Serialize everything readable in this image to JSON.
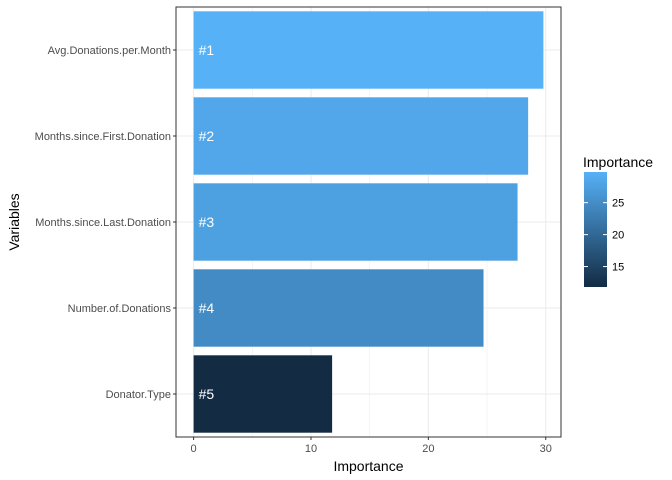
{
  "chart_data": {
    "type": "bar",
    "orientation": "horizontal",
    "xlabel": "Importance",
    "ylabel": "Variables",
    "xlim": [
      -1.5,
      31.3
    ],
    "x_ticks": [
      0,
      10,
      20,
      30
    ],
    "grid": true,
    "categories": [
      "Avg.Donations.per.Month",
      "Months.since.First.Donation",
      "Months.since.Last.Donation",
      "Number.of.Donations",
      "Donator.Type"
    ],
    "values": [
      29.8,
      28.5,
      27.6,
      24.7,
      11.8
    ],
    "bar_labels": [
      "#1",
      "#2",
      "#3",
      "#4",
      "#5"
    ],
    "color_scale": {
      "title": "Importance",
      "min": 11.8,
      "max": 29.8,
      "low_color": "#132b43",
      "high_color": "#56b1f7",
      "ticks": [
        15,
        20,
        25
      ]
    },
    "legend_position": "right"
  }
}
